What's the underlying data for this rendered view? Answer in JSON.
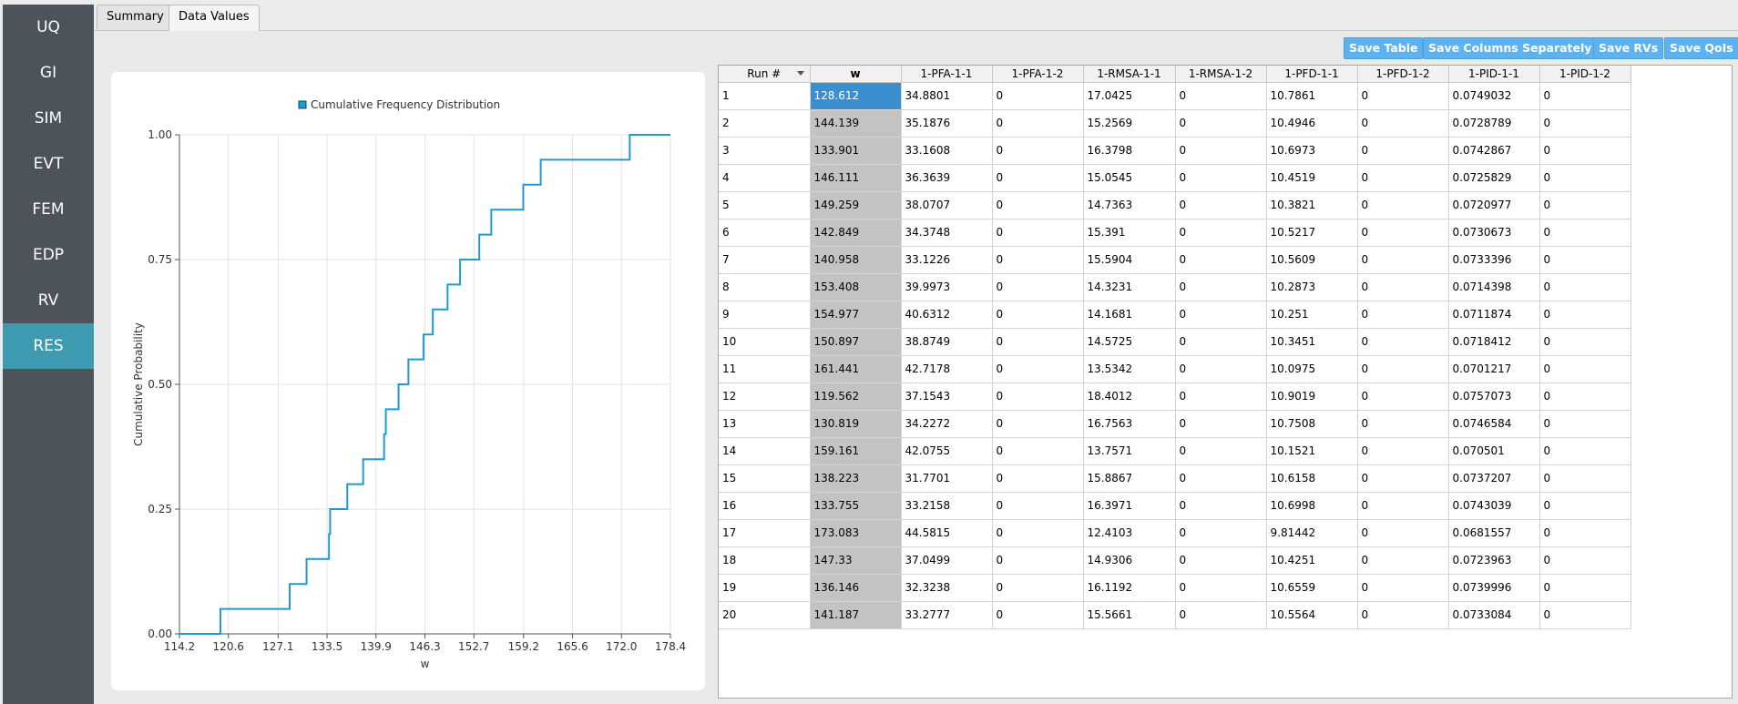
{
  "sidebar": {
    "items": [
      {
        "label": "UQ",
        "active": false
      },
      {
        "label": "GI",
        "active": false
      },
      {
        "label": "SIM",
        "active": false
      },
      {
        "label": "EVT",
        "active": false
      },
      {
        "label": "FEM",
        "active": false
      },
      {
        "label": "EDP",
        "active": false
      },
      {
        "label": "RV",
        "active": false
      },
      {
        "label": "RES",
        "active": true
      }
    ]
  },
  "tabs": [
    {
      "label": "Summary",
      "active": false
    },
    {
      "label": "Data Values",
      "active": true
    }
  ],
  "toolbar": {
    "save_table": "Save Table",
    "save_columns": "Save Columns Separately",
    "save_rvs": "Save RVs",
    "save_qois": "Save QoIs"
  },
  "chart_data": {
    "type": "line",
    "step": true,
    "legend": "Cumulative Frequency Distribution",
    "legend_position": "top-center",
    "xlabel": "w",
    "ylabel": "Cumulative Probability",
    "xlim": [
      114.2,
      178.4
    ],
    "ylim": [
      0,
      1
    ],
    "xticks": [
      "114.2",
      "120.6",
      "127.1",
      "133.5",
      "139.9",
      "146.3",
      "152.7",
      "159.2",
      "165.6",
      "172.0",
      "178.4"
    ],
    "yticks": [
      "0.00",
      "0.25",
      "0.50",
      "0.75",
      "1.00"
    ],
    "grid": true,
    "series": [
      {
        "color": "#1f9bd1",
        "x": [
          114.2,
          119.562,
          128.612,
          130.819,
          133.755,
          133.901,
          136.146,
          138.223,
          140.958,
          141.187,
          142.849,
          144.139,
          146.111,
          147.33,
          149.259,
          150.897,
          153.408,
          154.977,
          159.161,
          161.441,
          173.083,
          178.4
        ],
        "y": [
          0,
          0.05,
          0.1,
          0.15,
          0.2,
          0.25,
          0.3,
          0.35,
          0.4,
          0.45,
          0.5,
          0.55,
          0.6,
          0.65,
          0.7,
          0.75,
          0.8,
          0.85,
          0.9,
          0.95,
          1.0,
          1.0
        ]
      }
    ]
  },
  "table": {
    "columns": [
      "Run #",
      "w",
      "1-PFA-1-1",
      "1-PFA-1-2",
      "1-RMSA-1-1",
      "1-RMSA-1-2",
      "1-PFD-1-1",
      "1-PFD-1-2",
      "1-PID-1-1",
      "1-PID-1-2"
    ],
    "rows": [
      [
        "1",
        "128.612",
        "34.8801",
        "0",
        "17.0425",
        "0",
        "10.7861",
        "0",
        "0.0749032",
        "0"
      ],
      [
        "2",
        "144.139",
        "35.1876",
        "0",
        "15.2569",
        "0",
        "10.4946",
        "0",
        "0.0728789",
        "0"
      ],
      [
        "3",
        "133.901",
        "33.1608",
        "0",
        "16.3798",
        "0",
        "10.6973",
        "0",
        "0.0742867",
        "0"
      ],
      [
        "4",
        "146.111",
        "36.3639",
        "0",
        "15.0545",
        "0",
        "10.4519",
        "0",
        "0.0725829",
        "0"
      ],
      [
        "5",
        "149.259",
        "38.0707",
        "0",
        "14.7363",
        "0",
        "10.3821",
        "0",
        "0.0720977",
        "0"
      ],
      [
        "6",
        "142.849",
        "34.3748",
        "0",
        "15.391",
        "0",
        "10.5217",
        "0",
        "0.0730673",
        "0"
      ],
      [
        "7",
        "140.958",
        "33.1226",
        "0",
        "15.5904",
        "0",
        "10.5609",
        "0",
        "0.0733396",
        "0"
      ],
      [
        "8",
        "153.408",
        "39.9973",
        "0",
        "14.3231",
        "0",
        "10.2873",
        "0",
        "0.0714398",
        "0"
      ],
      [
        "9",
        "154.977",
        "40.6312",
        "0",
        "14.1681",
        "0",
        "10.251",
        "0",
        "0.0711874",
        "0"
      ],
      [
        "10",
        "150.897",
        "38.8749",
        "0",
        "14.5725",
        "0",
        "10.3451",
        "0",
        "0.0718412",
        "0"
      ],
      [
        "11",
        "161.441",
        "42.7178",
        "0",
        "13.5342",
        "0",
        "10.0975",
        "0",
        "0.0701217",
        "0"
      ],
      [
        "12",
        "119.562",
        "37.1543",
        "0",
        "18.4012",
        "0",
        "10.9019",
        "0",
        "0.0757073",
        "0"
      ],
      [
        "13",
        "130.819",
        "34.2272",
        "0",
        "16.7563",
        "0",
        "10.7508",
        "0",
        "0.0746584",
        "0"
      ],
      [
        "14",
        "159.161",
        "42.0755",
        "0",
        "13.7571",
        "0",
        "10.1521",
        "0",
        "0.070501",
        "0"
      ],
      [
        "15",
        "138.223",
        "31.7701",
        "0",
        "15.8867",
        "0",
        "10.6158",
        "0",
        "0.0737207",
        "0"
      ],
      [
        "16",
        "133.755",
        "33.2158",
        "0",
        "16.3971",
        "0",
        "10.6998",
        "0",
        "0.0743039",
        "0"
      ],
      [
        "17",
        "173.083",
        "44.5815",
        "0",
        "12.4103",
        "0",
        "9.81442",
        "0",
        "0.0681557",
        "0"
      ],
      [
        "18",
        "147.33",
        "37.0499",
        "0",
        "14.9306",
        "0",
        "10.4251",
        "0",
        "0.0723963",
        "0"
      ],
      [
        "19",
        "136.146",
        "32.3238",
        "0",
        "16.1192",
        "0",
        "10.6559",
        "0",
        "0.0739996",
        "0"
      ],
      [
        "20",
        "141.187",
        "33.2777",
        "0",
        "15.5661",
        "0",
        "10.5564",
        "0",
        "0.0733084",
        "0"
      ]
    ]
  }
}
